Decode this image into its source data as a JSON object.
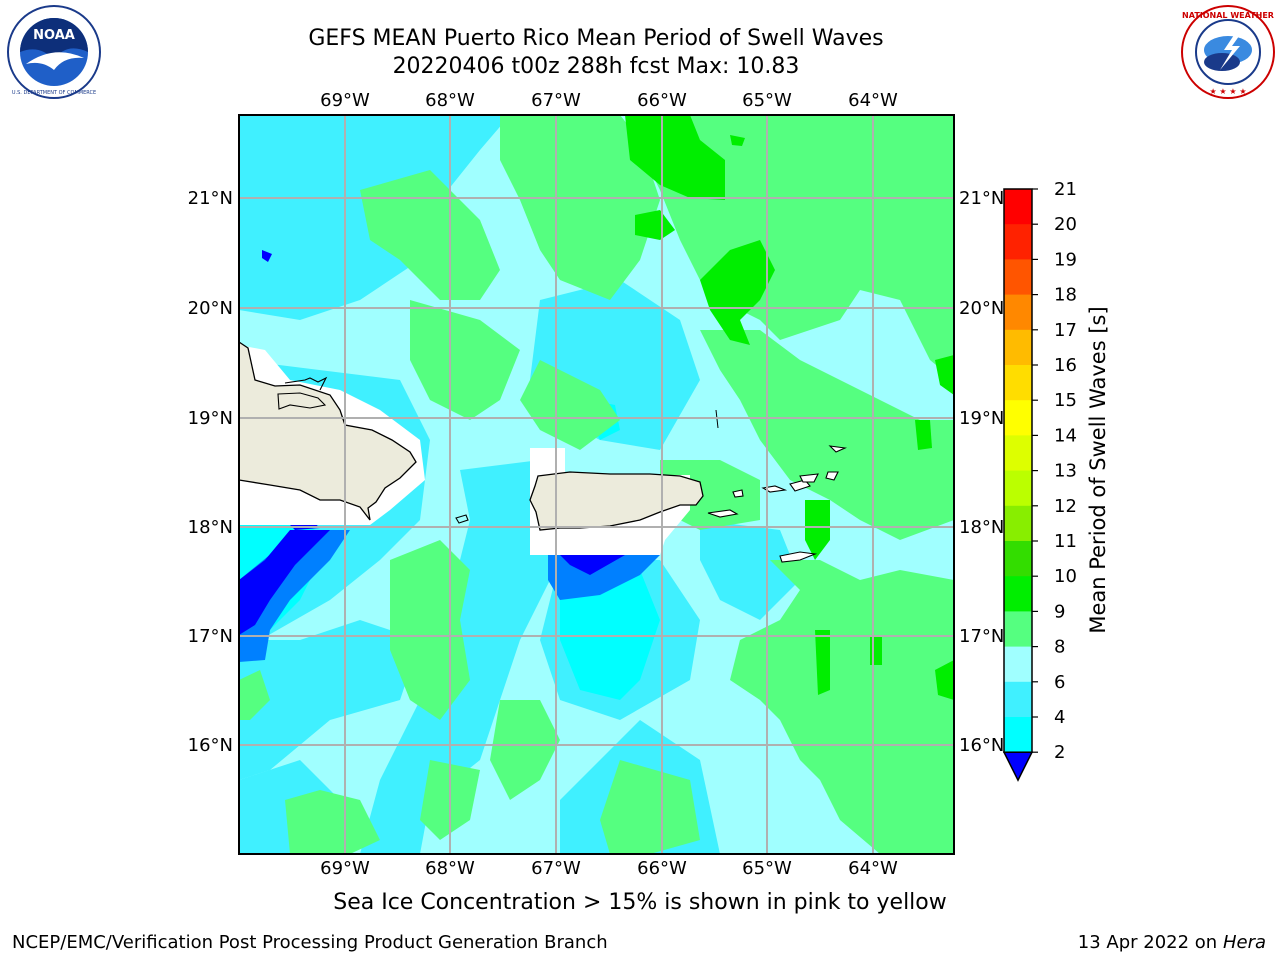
{
  "header": {
    "title_line1": "GEFS MEAN Puerto Rico Mean Period of Swell Waves",
    "title_line2": "20220406 t00z 288h fcst   Max: 10.83"
  },
  "logos": {
    "left": "noaa-logo",
    "right": "nws-logo"
  },
  "map": {
    "lon_labels": [
      "69°W",
      "68°W",
      "67°W",
      "66°W",
      "65°W",
      "64°W"
    ],
    "lat_labels": [
      "21°N",
      "20°N",
      "19°N",
      "18°N",
      "17°N",
      "16°N"
    ],
    "land_color": "#ecebdc",
    "gridline_color": "#b0b0b0"
  },
  "colorbar": {
    "label": "Mean Period of Swell Waves [s]",
    "ticks": [
      "2",
      "4",
      "6",
      "8",
      "9",
      "10",
      "11",
      "12",
      "13",
      "14",
      "15",
      "16",
      "17",
      "18",
      "19",
      "20",
      "21"
    ],
    "colors": [
      "#0000ff",
      "#0080ff",
      "#00ffff",
      "#40f0ff",
      "#a0ffff",
      "#55ff80",
      "#00ee00",
      "#33dd00",
      "#88ee00",
      "#bbff00",
      "#ddff00",
      "#ffff00",
      "#ffdd00",
      "#ffbb00",
      "#ff8800",
      "#ff5500",
      "#ff2200",
      "#ff0000"
    ]
  },
  "footer": {
    "note": "Sea Ice Concentration > 15% is shown in pink to yellow",
    "credit": "NCEP/EMC/Verification Post Processing Product Generation Branch",
    "date": "13 Apr 2022 on",
    "machine": "Hera"
  }
}
